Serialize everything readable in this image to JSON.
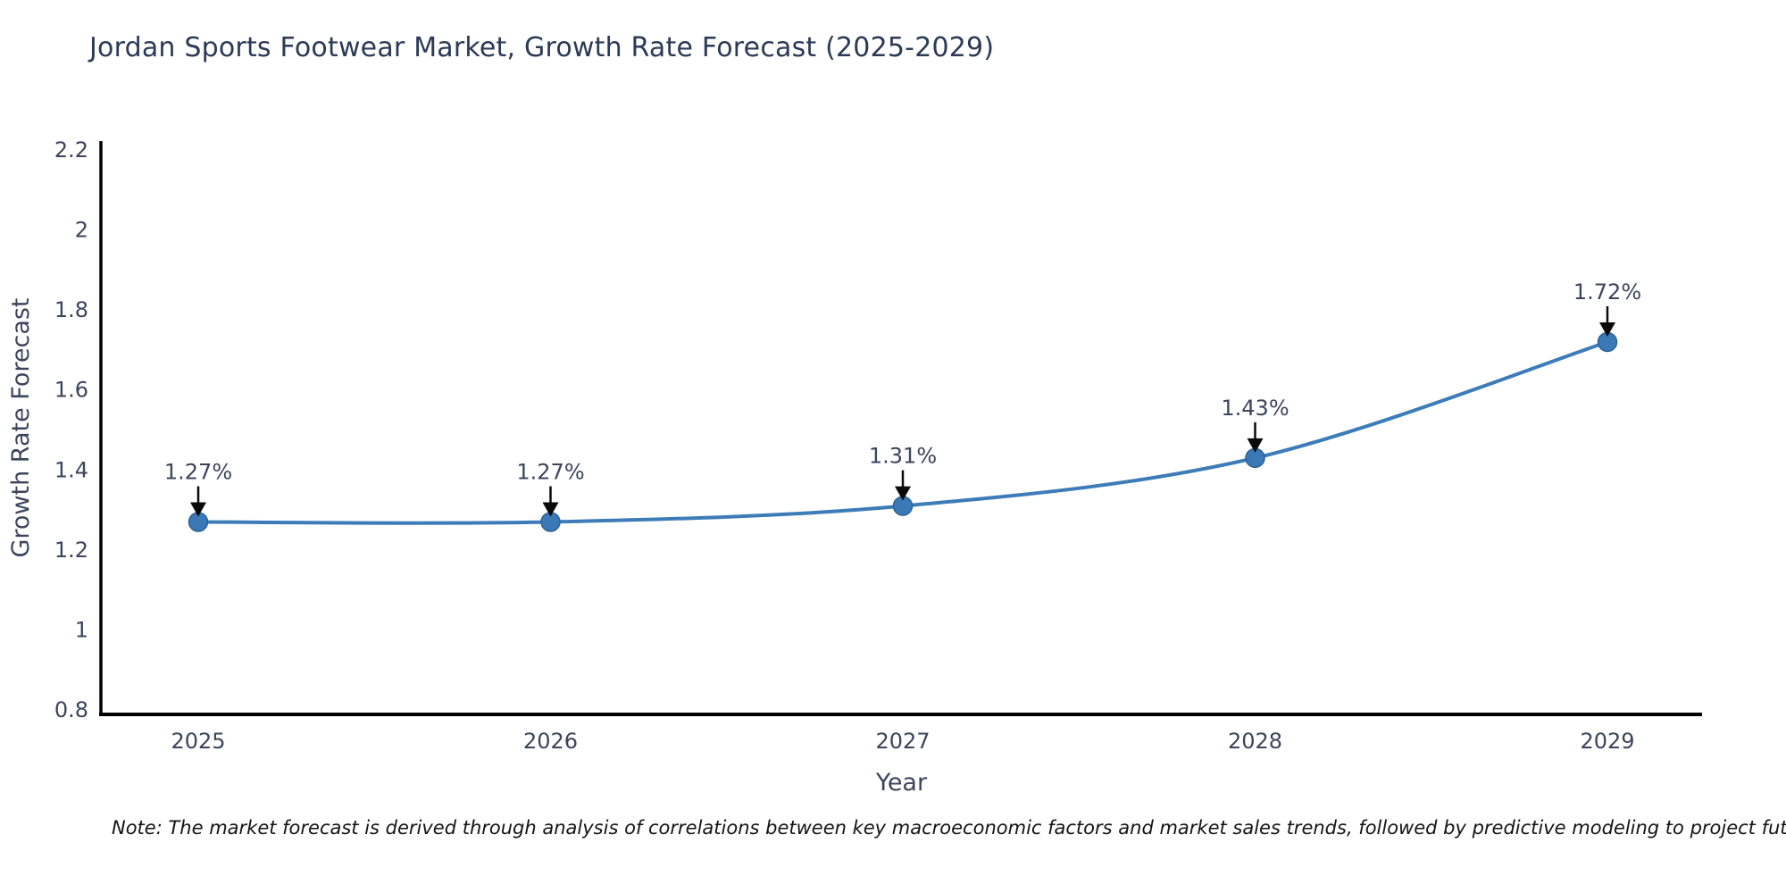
{
  "page": {
    "title": "Jordan Sports Footwear Market, Growth Rate Forecast (2025-2029)",
    "note": "Note: The market forecast is derived through analysis of correlations between key macroeconomic factors and market sales trends, followed by predictive modeling to project future sales"
  },
  "chart_data": {
    "type": "line",
    "title": "Jordan Sports Footwear Market, Growth Rate Forecast (2025-2029)",
    "x": [
      2025,
      2026,
      2027,
      2028,
      2029
    ],
    "series": [
      {
        "name": "Growth Rate Forecast",
        "values": [
          1.27,
          1.27,
          1.31,
          1.43,
          1.72
        ]
      }
    ],
    "point_labels": [
      "1.27%",
      "1.27%",
      "1.31%",
      "1.43%",
      "1.72%"
    ],
    "xlabel": "Year",
    "ylabel": "Growth Rate Forecast",
    "ylim": [
      0.8,
      2.2
    ],
    "yticks": [
      0.8,
      1,
      1.2,
      1.4,
      1.6,
      1.8,
      2,
      2.2
    ],
    "grid": false,
    "legend_position": "none",
    "colors": {
      "line": "#3d7cb8",
      "marker_fill": "#3a79b5",
      "marker_edge": "#2c6396",
      "annotation_arrow": "#0a0a0a",
      "tick_text": "#3b455c",
      "title_text": "#2b3a55",
      "note_text": "#141414",
      "axis": "#000000",
      "background": "#ffffff"
    }
  }
}
